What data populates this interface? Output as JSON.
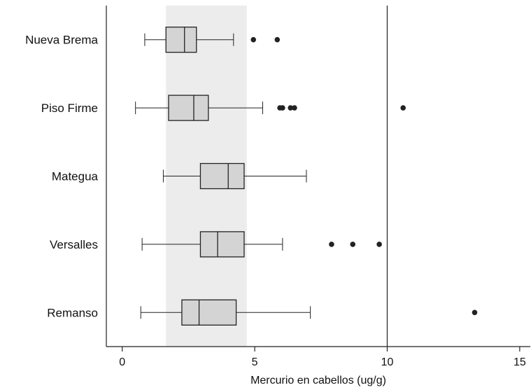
{
  "chart_data": {
    "type": "boxplot",
    "orientation": "horizontal",
    "title": "",
    "xlabel": "Mercurio en cabellos (ug/g)",
    "ylabel": "",
    "xlim": [
      -0.6,
      15.4
    ],
    "xticks": [
      0,
      5,
      10,
      15
    ],
    "tick_labels": [
      "0",
      "5",
      "10",
      "15"
    ],
    "reference_line": 10,
    "reference_band": [
      1.65,
      4.7
    ],
    "grid": false,
    "categories": [
      "Nueva Brema",
      "Piso Firme",
      "Mategua",
      "Versalles",
      "Remanso"
    ],
    "boxes": [
      {
        "name": "Nueva Brema",
        "whisker_low": 0.85,
        "q1": 1.65,
        "median": 2.35,
        "q3": 2.8,
        "whisker_high": 4.2,
        "outliers": [
          4.95,
          5.85
        ]
      },
      {
        "name": "Piso Firme",
        "whisker_low": 0.5,
        "q1": 1.75,
        "median": 2.7,
        "q3": 3.25,
        "whisker_high": 5.3,
        "outliers": [
          5.95,
          6.05,
          6.35,
          6.5,
          10.6
        ]
      },
      {
        "name": "Mategua",
        "whisker_low": 1.55,
        "q1": 2.95,
        "median": 4.0,
        "q3": 4.6,
        "whisker_high": 6.95,
        "outliers": []
      },
      {
        "name": "Versalles",
        "whisker_low": 0.75,
        "q1": 2.95,
        "median": 3.6,
        "q3": 4.6,
        "whisker_high": 6.05,
        "outliers": [
          7.9,
          8.7,
          9.7
        ]
      },
      {
        "name": "Remanso",
        "whisker_low": 0.7,
        "q1": 2.25,
        "median": 2.9,
        "q3": 4.3,
        "whisker_high": 7.1,
        "outliers": [
          13.3
        ]
      }
    ],
    "colors": {
      "box_fill": "#d4d4d4",
      "band_fill": "#ececec",
      "line": "#222222",
      "outlier": "#222222"
    }
  }
}
